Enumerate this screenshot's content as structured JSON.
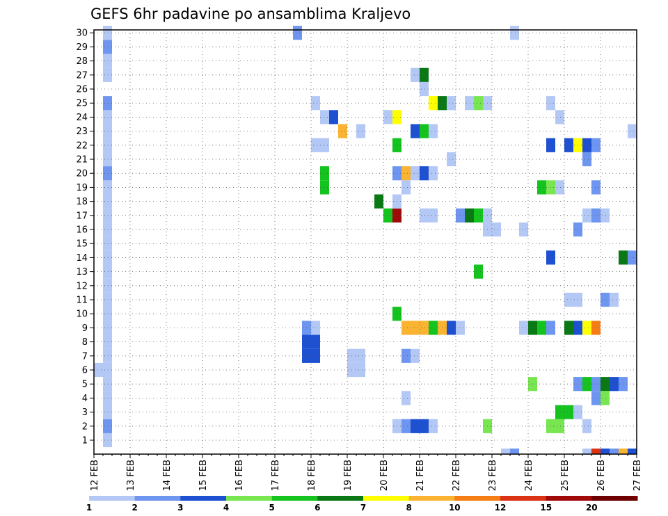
{
  "chart_data": {
    "type": "heatmap",
    "title": "GEFS 6hr padavine po ansamblima Kraljevo",
    "xlabel": "",
    "ylabel": "",
    "x_tick_labels": [
      "12 FEB",
      "13 FEB",
      "14 FEB",
      "15 FEB",
      "16 FEB",
      "17 FEB",
      "18 FEB",
      "19 FEB",
      "20 FEB",
      "21 FEB",
      "22 FEB",
      "23 FEB",
      "24 FEB",
      "25 FEB",
      "26 FEB",
      "27 FEB"
    ],
    "x_range_days": [
      0,
      15
    ],
    "y_tick_labels": [
      "1",
      "2",
      "3",
      "4",
      "5",
      "6",
      "7",
      "8",
      "9",
      "10",
      "11",
      "12",
      "13",
      "14",
      "15",
      "16",
      "17",
      "18",
      "19",
      "20",
      "21",
      "22",
      "23",
      "24",
      "25",
      "26",
      "27",
      "28",
      "29",
      "30"
    ],
    "y_range": [
      0,
      30
    ],
    "grid": true,
    "color_scale": {
      "labels": [
        "1",
        "2",
        "3",
        "4",
        "5",
        "6",
        "7",
        "8",
        "10",
        "12",
        "15",
        "20"
      ],
      "colors": [
        "#b4c8f5",
        "#6e96f0",
        "#1e50d2",
        "#78e650",
        "#14c31e",
        "#0a7814",
        "#ffff00",
        "#fab432",
        "#f57d14",
        "#dc3214",
        "#a00a0a",
        "#6e0000"
      ]
    },
    "cells": [
      {
        "x": 0.0,
        "y": 6,
        "c": 0
      },
      {
        "x": 0.25,
        "y": 6,
        "c": 0
      },
      {
        "x": 0.25,
        "y": 1,
        "c": 0
      },
      {
        "x": 0.25,
        "y": 2,
        "c": 1
      },
      {
        "x": 0.25,
        "y": 3,
        "c": 0
      },
      {
        "x": 0.25,
        "y": 4,
        "c": 0
      },
      {
        "x": 0.25,
        "y": 5,
        "c": 0
      },
      {
        "x": 0.25,
        "y": 7,
        "c": 0
      },
      {
        "x": 0.25,
        "y": 8,
        "c": 0
      },
      {
        "x": 0.25,
        "y": 9,
        "c": 0
      },
      {
        "x": 0.25,
        "y": 10,
        "c": 0
      },
      {
        "x": 0.25,
        "y": 11,
        "c": 0
      },
      {
        "x": 0.25,
        "y": 12,
        "c": 0
      },
      {
        "x": 0.25,
        "y": 13,
        "c": 0
      },
      {
        "x": 0.25,
        "y": 14,
        "c": 0
      },
      {
        "x": 0.25,
        "y": 15,
        "c": 0
      },
      {
        "x": 0.25,
        "y": 16,
        "c": 0
      },
      {
        "x": 0.25,
        "y": 17,
        "c": 0
      },
      {
        "x": 0.25,
        "y": 18,
        "c": 0
      },
      {
        "x": 0.25,
        "y": 19,
        "c": 0
      },
      {
        "x": 0.25,
        "y": 20,
        "c": 1
      },
      {
        "x": 0.25,
        "y": 21,
        "c": 0
      },
      {
        "x": 0.25,
        "y": 22,
        "c": 0
      },
      {
        "x": 0.25,
        "y": 23,
        "c": 0
      },
      {
        "x": 0.25,
        "y": 24,
        "c": 0
      },
      {
        "x": 0.25,
        "y": 25,
        "c": 1
      },
      {
        "x": 0.25,
        "y": 27,
        "c": 0
      },
      {
        "x": 0.25,
        "y": 28,
        "c": 0
      },
      {
        "x": 0.25,
        "y": 29,
        "c": 1
      },
      {
        "x": 0.25,
        "y": 30,
        "c": 0
      },
      {
        "x": 5.5,
        "y": 30,
        "c": 1
      },
      {
        "x": 11.5,
        "y": 30,
        "c": 0
      },
      {
        "x": 6.0,
        "y": 25,
        "c": 0
      },
      {
        "x": 6.25,
        "y": 24,
        "c": 0
      },
      {
        "x": 6.5,
        "y": 24,
        "c": 2
      },
      {
        "x": 6.75,
        "y": 23,
        "c": 7
      },
      {
        "x": 7.25,
        "y": 23,
        "c": 0
      },
      {
        "x": 6.0,
        "y": 22,
        "c": 0
      },
      {
        "x": 6.25,
        "y": 22,
        "c": 0
      },
      {
        "x": 6.25,
        "y": 20,
        "c": 4
      },
      {
        "x": 6.25,
        "y": 19,
        "c": 4
      },
      {
        "x": 5.75,
        "y": 9,
        "c": 1
      },
      {
        "x": 6.0,
        "y": 9,
        "c": 0
      },
      {
        "x": 5.75,
        "y": 7,
        "c": 2
      },
      {
        "x": 6.0,
        "y": 7,
        "c": 2
      },
      {
        "x": 5.75,
        "y": 8,
        "c": 2
      },
      {
        "x": 6.0,
        "y": 8,
        "c": 2
      },
      {
        "x": 7.0,
        "y": 6,
        "c": 0
      },
      {
        "x": 7.25,
        "y": 6,
        "c": 0
      },
      {
        "x": 7.0,
        "y": 7,
        "c": 0
      },
      {
        "x": 7.25,
        "y": 7,
        "c": 0
      },
      {
        "x": 7.75,
        "y": 18,
        "c": 5
      },
      {
        "x": 8.0,
        "y": 17,
        "c": 4
      },
      {
        "x": 8.25,
        "y": 17,
        "c": 10
      },
      {
        "x": 8.0,
        "y": 24,
        "c": 0
      },
      {
        "x": 8.25,
        "y": 24,
        "c": 6
      },
      {
        "x": 8.25,
        "y": 22,
        "c": 4
      },
      {
        "x": 8.25,
        "y": 20,
        "c": 1
      },
      {
        "x": 8.5,
        "y": 20,
        "c": 7
      },
      {
        "x": 8.75,
        "y": 20,
        "c": 0
      },
      {
        "x": 9.0,
        "y": 20,
        "c": 2
      },
      {
        "x": 9.25,
        "y": 20,
        "c": 0
      },
      {
        "x": 8.5,
        "y": 19,
        "c": 0
      },
      {
        "x": 8.25,
        "y": 18,
        "c": 0
      },
      {
        "x": 8.25,
        "y": 10,
        "c": 4
      },
      {
        "x": 8.5,
        "y": 9,
        "c": 7
      },
      {
        "x": 8.75,
        "y": 9,
        "c": 7
      },
      {
        "x": 9.0,
        "y": 9,
        "c": 7
      },
      {
        "x": 9.25,
        "y": 9,
        "c": 4
      },
      {
        "x": 9.5,
        "y": 9,
        "c": 7
      },
      {
        "x": 9.75,
        "y": 9,
        "c": 2
      },
      {
        "x": 10.0,
        "y": 9,
        "c": 0
      },
      {
        "x": 8.5,
        "y": 7,
        "c": 1
      },
      {
        "x": 8.75,
        "y": 7,
        "c": 0
      },
      {
        "x": 8.5,
        "y": 4,
        "c": 0
      },
      {
        "x": 8.25,
        "y": 2,
        "c": 0
      },
      {
        "x": 8.5,
        "y": 2,
        "c": 1
      },
      {
        "x": 8.75,
        "y": 2,
        "c": 2
      },
      {
        "x": 9.0,
        "y": 2,
        "c": 2
      },
      {
        "x": 9.25,
        "y": 2,
        "c": 0
      },
      {
        "x": 8.75,
        "y": 27,
        "c": 0
      },
      {
        "x": 9.0,
        "y": 27,
        "c": 5
      },
      {
        "x": 9.0,
        "y": 26,
        "c": 0
      },
      {
        "x": 9.25,
        "y": 25,
        "c": 6
      },
      {
        "x": 9.5,
        "y": 25,
        "c": 5
      },
      {
        "x": 9.75,
        "y": 25,
        "c": 0
      },
      {
        "x": 8.75,
        "y": 23,
        "c": 2
      },
      {
        "x": 9.0,
        "y": 23,
        "c": 4
      },
      {
        "x": 9.25,
        "y": 23,
        "c": 0
      },
      {
        "x": 9.0,
        "y": 17,
        "c": 0
      },
      {
        "x": 9.25,
        "y": 17,
        "c": 0
      },
      {
        "x": 9.75,
        "y": 21,
        "c": 0
      },
      {
        "x": 10.0,
        "y": 17,
        "c": 1
      },
      {
        "x": 10.25,
        "y": 17,
        "c": 5
      },
      {
        "x": 10.5,
        "y": 17,
        "c": 4
      },
      {
        "x": 10.75,
        "y": 17,
        "c": 0
      },
      {
        "x": 10.25,
        "y": 25,
        "c": 0
      },
      {
        "x": 10.5,
        "y": 25,
        "c": 3
      },
      {
        "x": 10.75,
        "y": 25,
        "c": 0
      },
      {
        "x": 10.75,
        "y": 16,
        "c": 0
      },
      {
        "x": 11.0,
        "y": 16,
        "c": 0
      },
      {
        "x": 10.5,
        "y": 13,
        "c": 4
      },
      {
        "x": 10.75,
        "y": 2,
        "c": 3
      },
      {
        "x": 11.75,
        "y": 16,
        "c": 0
      },
      {
        "x": 11.25,
        "y": 0,
        "c": 0
      },
      {
        "x": 11.5,
        "y": 0,
        "c": 1
      },
      {
        "x": 11.75,
        "y": 9,
        "c": 0
      },
      {
        "x": 12.0,
        "y": 9,
        "c": 5
      },
      {
        "x": 12.25,
        "y": 9,
        "c": 4
      },
      {
        "x": 12.5,
        "y": 9,
        "c": 1
      },
      {
        "x": 12.0,
        "y": 5,
        "c": 3
      },
      {
        "x": 12.25,
        "y": 19,
        "c": 4
      },
      {
        "x": 12.5,
        "y": 19,
        "c": 3
      },
      {
        "x": 12.75,
        "y": 19,
        "c": 0
      },
      {
        "x": 12.5,
        "y": 22,
        "c": 2
      },
      {
        "x": 12.5,
        "y": 25,
        "c": 0
      },
      {
        "x": 12.75,
        "y": 24,
        "c": 0
      },
      {
        "x": 12.5,
        "y": 14,
        "c": 2
      },
      {
        "x": 12.5,
        "y": 2,
        "c": 3
      },
      {
        "x": 12.75,
        "y": 2,
        "c": 3
      },
      {
        "x": 12.75,
        "y": 3,
        "c": 4
      },
      {
        "x": 13.0,
        "y": 3,
        "c": 4
      },
      {
        "x": 13.25,
        "y": 3,
        "c": 0
      },
      {
        "x": 13.0,
        "y": 22,
        "c": 2
      },
      {
        "x": 13.25,
        "y": 22,
        "c": 6
      },
      {
        "x": 13.5,
        "y": 22,
        "c": 2
      },
      {
        "x": 13.75,
        "y": 22,
        "c": 1
      },
      {
        "x": 13.5,
        "y": 21,
        "c": 1
      },
      {
        "x": 13.75,
        "y": 19,
        "c": 1
      },
      {
        "x": 13.25,
        "y": 16,
        "c": 1
      },
      {
        "x": 13.5,
        "y": 17,
        "c": 0
      },
      {
        "x": 13.75,
        "y": 17,
        "c": 1
      },
      {
        "x": 14.0,
        "y": 17,
        "c": 0
      },
      {
        "x": 13.0,
        "y": 11,
        "c": 0
      },
      {
        "x": 13.25,
        "y": 11,
        "c": 0
      },
      {
        "x": 14.0,
        "y": 11,
        "c": 1
      },
      {
        "x": 14.25,
        "y": 11,
        "c": 0
      },
      {
        "x": 13.0,
        "y": 9,
        "c": 5
      },
      {
        "x": 13.25,
        "y": 9,
        "c": 2
      },
      {
        "x": 13.5,
        "y": 9,
        "c": 6
      },
      {
        "x": 13.75,
        "y": 9,
        "c": 8
      },
      {
        "x": 13.25,
        "y": 5,
        "c": 1
      },
      {
        "x": 13.5,
        "y": 5,
        "c": 4
      },
      {
        "x": 13.75,
        "y": 5,
        "c": 1
      },
      {
        "x": 14.0,
        "y": 5,
        "c": 5
      },
      {
        "x": 14.25,
        "y": 5,
        "c": 2
      },
      {
        "x": 14.5,
        "y": 5,
        "c": 1
      },
      {
        "x": 13.75,
        "y": 4,
        "c": 1
      },
      {
        "x": 14.0,
        "y": 4,
        "c": 3
      },
      {
        "x": 13.5,
        "y": 2,
        "c": 0
      },
      {
        "x": 14.5,
        "y": 14,
        "c": 5
      },
      {
        "x": 14.75,
        "y": 14,
        "c": 1
      },
      {
        "x": 14.75,
        "y": 23,
        "c": 0
      },
      {
        "x": 13.5,
        "y": 0,
        "c": 0
      },
      {
        "x": 13.75,
        "y": 0,
        "c": 9
      },
      {
        "x": 14.0,
        "y": 0,
        "c": 2
      },
      {
        "x": 14.25,
        "y": 0,
        "c": 1
      },
      {
        "x": 14.5,
        "y": 0,
        "c": 7
      },
      {
        "x": 14.75,
        "y": 0,
        "c": 2
      }
    ]
  }
}
